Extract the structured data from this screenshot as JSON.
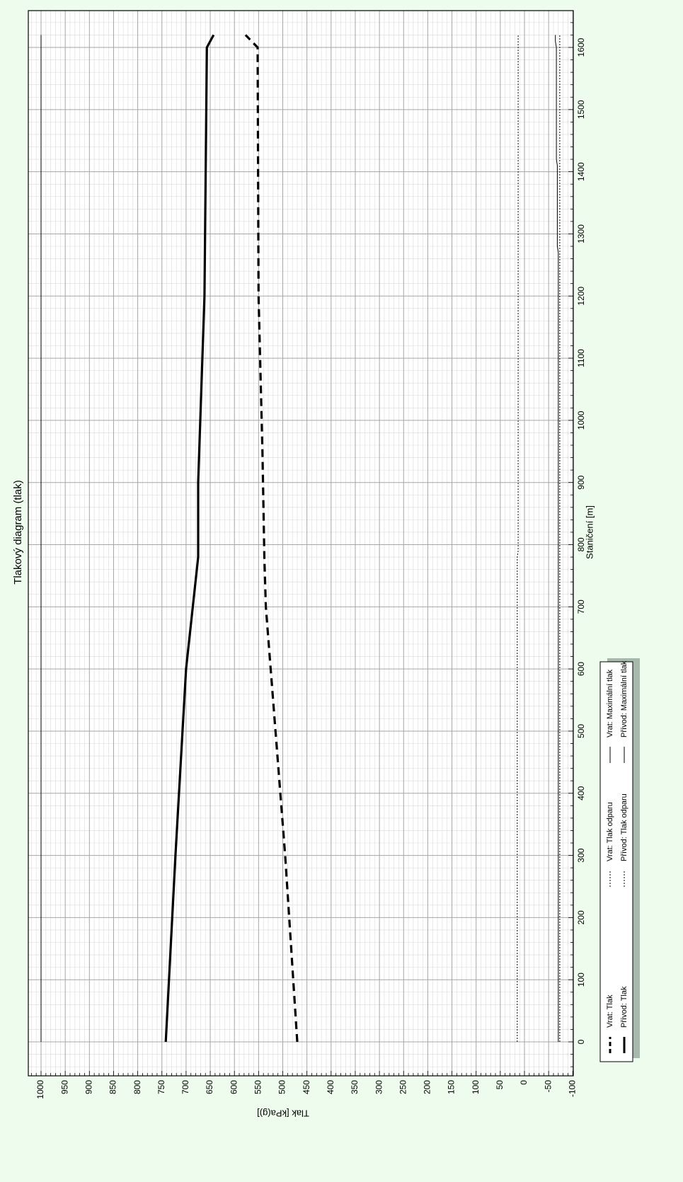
{
  "chart_data": {
    "type": "line",
    "title": "Tlakový diagram (tlak)",
    "xlabel": "Staničení [m]",
    "ylabel": "Tlak [kPa(g)]",
    "xlim": [
      -100,
      1650
    ],
    "ylim": [
      -100,
      1030
    ],
    "x_ticks": [
      "0",
      "100",
      "200",
      "300",
      "400",
      "500",
      "600",
      "700",
      "800",
      "900",
      "1000",
      "1100",
      "1200",
      "1300",
      "1400",
      "1500",
      "1600"
    ],
    "y_ticks": [
      "1000",
      "950",
      "900",
      "850",
      "800",
      "750",
      "700",
      "650",
      "600",
      "550",
      "500",
      "450",
      "400",
      "350",
      "300",
      "250",
      "200",
      "150",
      "100",
      "50",
      "0",
      "-50",
      "-100"
    ],
    "grid": true,
    "orientation": "rotated 90° (x axis runs top-to-bottom)",
    "legend_position": "bottom-right",
    "series": [
      {
        "name": "Vrat: Tlak",
        "style": "dashed-bold",
        "x": [
          0,
          300,
          700,
          780,
          950,
          1200,
          1600,
          1620
        ],
        "y": [
          470,
          495,
          535,
          538,
          542,
          550,
          552,
          577
        ]
      },
      {
        "name": "Přívod: Tlak",
        "style": "solid-bold",
        "x": [
          0,
          300,
          600,
          780,
          900,
          1200,
          1600,
          1620
        ],
        "y": [
          742,
          722,
          700,
          675,
          675,
          662,
          657,
          643
        ]
      },
      {
        "name": "Vrat: Tlak odparu",
        "style": "dotted-thin",
        "x": [
          0,
          780,
          790,
          1600,
          1620
        ],
        "y": [
          15,
          15,
          13,
          13,
          13
        ]
      },
      {
        "name": "Přívod: Tlak odparu",
        "style": "dotted-thin",
        "x": [
          0,
          1600,
          1620
        ],
        "y": [
          -73,
          -73,
          -73
        ]
      },
      {
        "name": "Vrat: Maximální tlak",
        "style": "solid-thin",
        "x": [
          0,
          1620
        ],
        "y": [
          1000,
          1000
        ]
      },
      {
        "name": "Přívod: Maximální tlak",
        "style": "solid-thin",
        "x": [
          0,
          1270,
          1280,
          1410,
          1420,
          1600,
          1610,
          1620
        ],
        "y": [
          -70,
          -70,
          -68,
          -68,
          -66,
          -66,
          -64,
          -64
        ]
      }
    ]
  },
  "legend": [
    {
      "label": "Vrat: Tlak",
      "style": "dashed-bold"
    },
    {
      "label": "Přívod: Tlak",
      "style": "solid-bold"
    },
    {
      "label": "Vrat: Tlak odparu",
      "style": "dotted-thin"
    },
    {
      "label": "Přívod: Tlak odparu",
      "style": "dotted-thin"
    },
    {
      "label": "Vrat: Maximální tlak",
      "style": "solid-thin"
    },
    {
      "label": "Přívod: Maximální tlak",
      "style": "solid-thin"
    }
  ]
}
